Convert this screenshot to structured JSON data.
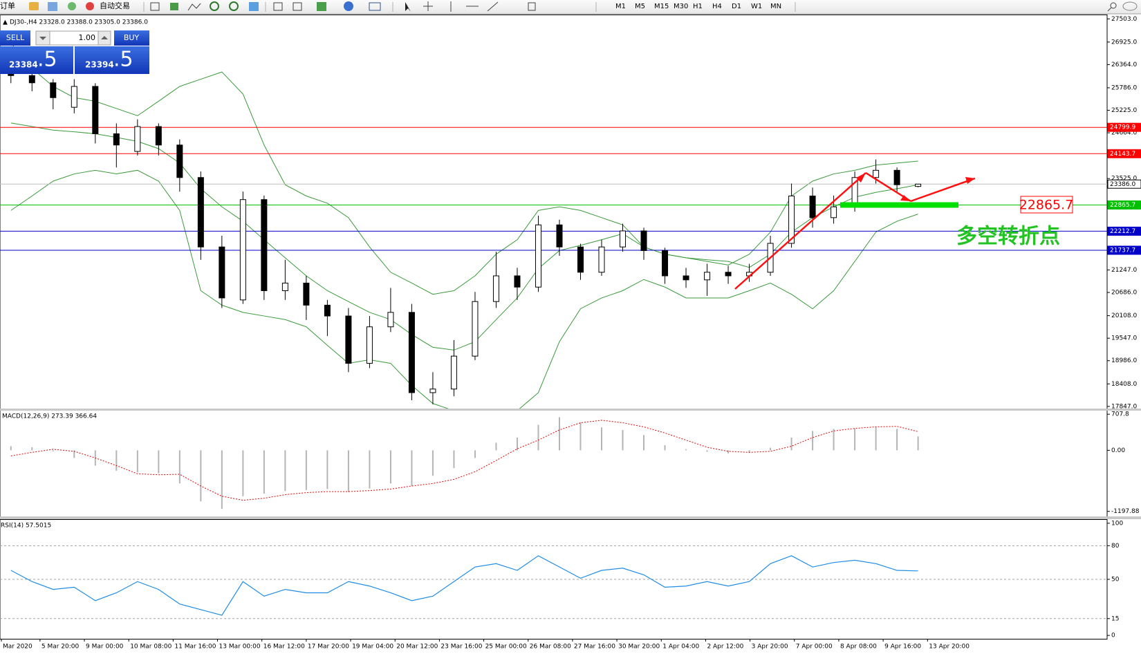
{
  "toolbar": {
    "new_order": "订单",
    "auto_trade": "自动交易",
    "timeframes": [
      "M1",
      "M5",
      "M15",
      "M30",
      "H1",
      "H4",
      "D1",
      "W1",
      "MN"
    ]
  },
  "trade_panel": {
    "sell": "SELL",
    "buy": "BUY",
    "volume": "1.00",
    "bid_main": "23384",
    "bid_frac": ".5",
    "ask_main": "23394",
    "ask_frac": ".5"
  },
  "chart_data": [
    {
      "type": "candlestick",
      "title": "DJ30-,H4  23328.0 23388.0 23305.0 23386.0",
      "open": [
        26300,
        26090,
        25910,
        25300,
        25820,
        24640,
        24200,
        24820,
        24360,
        23550,
        21820,
        20500,
        23000,
        20730,
        20920,
        20370,
        20100,
        18920,
        19830,
        20190,
        18190,
        18280,
        19100,
        20460,
        21100,
        20820,
        22370,
        21820,
        21190,
        21820,
        22220,
        21730,
        21100,
        21000,
        21190,
        21100,
        21190,
        21910,
        23090,
        22550,
        22820,
        23550,
        23730,
        23328
      ],
      "high": [
        26500,
        26250,
        26000,
        26000,
        25900,
        24900,
        25000,
        24900,
        24500,
        23700,
        22100,
        23200,
        23100,
        21500,
        21100,
        20500,
        20300,
        20100,
        20800,
        20400,
        18700,
        19500,
        20700,
        21700,
        21300,
        22600,
        22500,
        21900,
        22000,
        22400,
        22300,
        21800,
        21300,
        21400,
        21350,
        21400,
        22100,
        23400,
        23300,
        23100,
        23700,
        24000,
        23800,
        23388
      ],
      "low": [
        25900,
        25700,
        25250,
        25150,
        24400,
        23800,
        24100,
        24100,
        23200,
        21500,
        20300,
        20400,
        20500,
        20500,
        20000,
        19600,
        18700,
        18800,
        19700,
        18000,
        17900,
        18100,
        19000,
        20300,
        20500,
        20700,
        21600,
        21000,
        21100,
        21700,
        21500,
        20900,
        20800,
        20600,
        20900,
        20950,
        21100,
        21800,
        22300,
        22400,
        22700,
        23400,
        23200,
        23305
      ],
      "close": [
        26090,
        25910,
        25540,
        25820,
        24640,
        24360,
        24820,
        24360,
        23550,
        21820,
        20550,
        23000,
        20730,
        20920,
        20370,
        20100,
        18920,
        19830,
        20190,
        18190,
        18280,
        19100,
        20460,
        21100,
        20820,
        22370,
        21820,
        21190,
        21820,
        22220,
        21730,
        21100,
        21000,
        21190,
        21100,
        21190,
        21910,
        23090,
        22550,
        22820,
        23550,
        23730,
        23370,
        23386
      ],
      "upper": [
        26900,
        26270,
        25820,
        25540,
        25450,
        25270,
        25090,
        25450,
        25820,
        26000,
        26180,
        25630,
        24360,
        23370,
        23090,
        22910,
        22550,
        21820,
        21190,
        20920,
        20640,
        20730,
        21100,
        21640,
        22000,
        22730,
        22820,
        22730,
        22550,
        22370,
        21820,
        21640,
        21550,
        21460,
        21370,
        21640,
        22190,
        23090,
        23460,
        23640,
        23730,
        23860,
        23910,
        23960
      ],
      "middle": [
        24910,
        24820,
        24730,
        24690,
        24640,
        24550,
        24450,
        24270,
        23910,
        23270,
        22820,
        22460,
        22000,
        21550,
        21100,
        20730,
        20460,
        20190,
        20010,
        19640,
        19320,
        19250,
        19460,
        20010,
        20550,
        21280,
        21730,
        21860,
        22000,
        22150,
        21820,
        21640,
        21550,
        21500,
        21460,
        21310,
        21640,
        22190,
        22550,
        22820,
        23060,
        23180,
        23270,
        23370
      ],
      "lower": [
        22730,
        23090,
        23460,
        23640,
        23730,
        23640,
        23730,
        23460,
        22730,
        20730,
        20370,
        20190,
        20100,
        20010,
        19830,
        19370,
        18920,
        19010,
        18920,
        18370,
        17920,
        17740,
        17740,
        17740,
        17740,
        18190,
        19460,
        20280,
        20550,
        20730,
        21010,
        20820,
        20550,
        20550,
        20550,
        20730,
        20920,
        20640,
        20280,
        20730,
        21460,
        22190,
        22460,
        22640
      ],
      "band_color": "#3a9a3a",
      "ylim": [
        17793,
        27594
      ],
      "yticks": [
        {
          "value": 27503,
          "label": "27503.0"
        },
        {
          "value": 26925,
          "label": "26925.0"
        },
        {
          "value": 26364,
          "label": "26364.0"
        },
        {
          "value": 25786,
          "label": "25786.0"
        },
        {
          "value": 25225,
          "label": "25225.0"
        },
        {
          "value": 24664,
          "label": "24664.0"
        },
        {
          "value": 23525,
          "label": "23525.0"
        },
        {
          "value": 21247,
          "label": "21247.0"
        },
        {
          "value": 20686,
          "label": "20686.0"
        },
        {
          "value": 20108,
          "label": "20108.0"
        },
        {
          "value": 19547,
          "label": "19547.0"
        },
        {
          "value": 18986,
          "label": "18986.0"
        },
        {
          "value": 18408,
          "label": "18408.0"
        },
        {
          "value": 17847,
          "label": "17847.0"
        }
      ],
      "levels": [
        {
          "value": 24799.9,
          "label": "24799.9",
          "color": "#ff0000",
          "text_color": "#ffffff"
        },
        {
          "value": 24143.7,
          "label": "24143.7",
          "color": "#ff0000",
          "text_color": "#ffffff"
        },
        {
          "value": 23386,
          "label": "23386.0",
          "color": "#c0c0c0",
          "text_color": "#000000"
        },
        {
          "value": 22865.7,
          "label": "22865.7",
          "color": "#00c000",
          "text_color": "#ffffff"
        },
        {
          "value": 22212.7,
          "label": "22212.7",
          "color": "#0000c8",
          "text_color": "#ffffff"
        },
        {
          "value": 21737.7,
          "label": "21737.7",
          "color": "#0000c8",
          "text_color": "#ffffff"
        }
      ],
      "annotation_price": 22865.7,
      "annotation_text": "多空转折点",
      "x_tick_labels": [
        "Mar 2020",
        "5 Mar 20:00",
        "9 Mar 00:00",
        "10 Mar 08:00",
        "11 Mar 16:00",
        "13 Mar 00:00",
        "16 Mar 12:00",
        "17 Mar 20:00",
        "19 Mar 04:00",
        "20 Mar 12:00",
        "23 Mar 16:00",
        "25 Mar 00:00",
        "26 Mar 08:00",
        "27 Mar 16:00",
        "30 Mar 20:00",
        "1 Apr 04:00",
        "2 Apr 12:00",
        "3 Apr 20:00",
        "7 Apr 00:00",
        "8 Apr 08:00",
        "9 Apr 16:00",
        "13 Apr 20:00"
      ]
    },
    {
      "type": "macd",
      "title": "MACD(12,26,9) 273.39 366.64",
      "histogram": [
        80,
        60,
        -20,
        -150,
        -300,
        -400,
        -430,
        -450,
        -650,
        -1000,
        -1150,
        -900,
        -850,
        -800,
        -780,
        -760,
        -820,
        -750,
        -650,
        -700,
        -500,
        -350,
        -150,
        150,
        250,
        500,
        650,
        550,
        450,
        400,
        300,
        100,
        20,
        -30,
        -60,
        -50,
        50,
        250,
        380,
        420,
        430,
        450,
        420,
        273
      ],
      "signal": [
        -110,
        -40,
        20,
        -20,
        -150,
        -300,
        -460,
        -480,
        -470,
        -700,
        -900,
        -980,
        -940,
        -870,
        -830,
        -810,
        -810,
        -790,
        -760,
        -700,
        -650,
        -570,
        -420,
        -200,
        30,
        200,
        400,
        540,
        590,
        540,
        460,
        340,
        200,
        60,
        -20,
        -40,
        -20,
        80,
        250,
        380,
        430,
        460,
        470,
        367
      ],
      "histogram_color": "#b4b4b4",
      "signal_color": "#e00000",
      "ylim": [
        -1297,
        778
      ],
      "yticks": [
        707.8,
        {
          "value": 0,
          "label": "0.00"
        },
        -1197.88
      ]
    },
    {
      "type": "line",
      "title": "RSI(14) 57.5015",
      "values": [
        58,
        48,
        41,
        43,
        31,
        38,
        48,
        41,
        28,
        23,
        18,
        48,
        35,
        41,
        38,
        38,
        48,
        44,
        38,
        31,
        35,
        48,
        61,
        64,
        58,
        71,
        61,
        51,
        58,
        60,
        54,
        43,
        44,
        48,
        44,
        48,
        64,
        71,
        61,
        65,
        67,
        64,
        58,
        57.5
      ],
      "color": "#1e8ce6",
      "ylim": [
        -3,
        103
      ],
      "yticks": [
        100,
        80,
        50,
        15,
        0
      ],
      "grid_levels": [
        80,
        50,
        15
      ]
    }
  ]
}
